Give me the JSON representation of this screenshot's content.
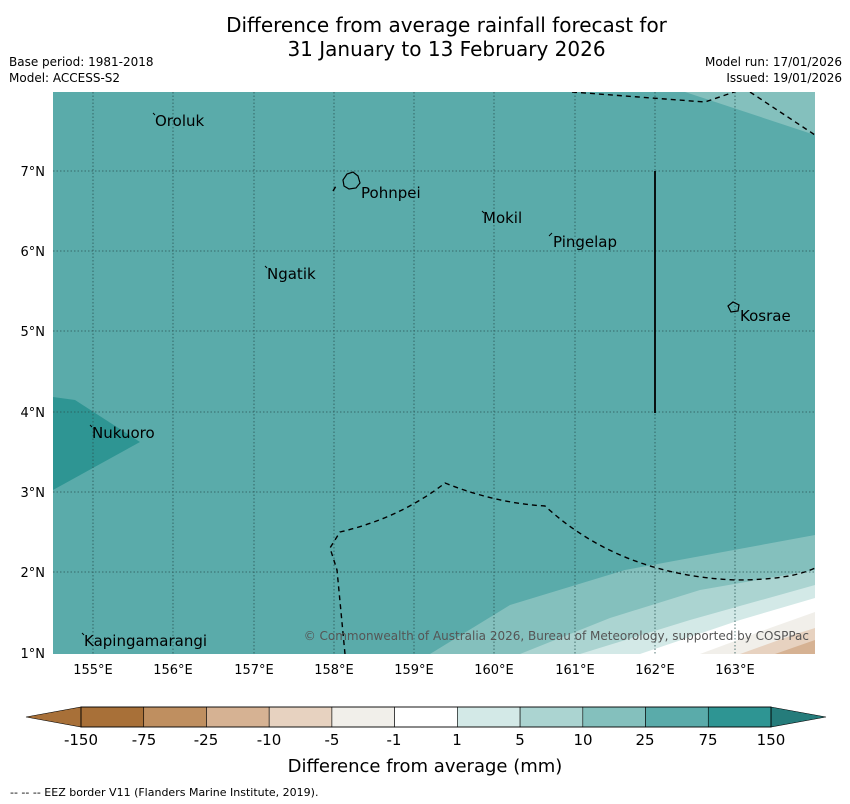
{
  "title": {
    "line1": "Difference from average rainfall forecast for",
    "line2": "31 January to 13 February 2026"
  },
  "meta": {
    "base_period": "Base period: 1981-2018",
    "model": "Model: ACCESS-S2",
    "model_run": "Model run: 17/01/2026",
    "issued": "Issued: 19/01/2026"
  },
  "places": {
    "oroluk": "Oroluk",
    "pohnpei": "Pohnpei",
    "mokil": "Mokil",
    "pingelap": "Pingelap",
    "ngatik": "Ngatik",
    "kosrae": "Kosrae",
    "nukuoro": "Nukuoro",
    "kapingamarangi": "Kapingamarangi"
  },
  "axes": {
    "lon_labels": [
      "155°E",
      "156°E",
      "157°E",
      "158°E",
      "159°E",
      "160°E",
      "161°E",
      "162°E",
      "163°E"
    ],
    "lat_labels": [
      "7°N",
      "6°N",
      "5°N",
      "4°N",
      "3°N",
      "2°N",
      "1°N"
    ]
  },
  "copyright": "© Commonwealth of Australia 2026, Bureau of Meteorology, supported by COSPPac",
  "colorbar": {
    "colors": [
      "#a87038",
      "#bf8f60",
      "#d6b293",
      "#e7d2c0",
      "#f1efea",
      "#ffffff",
      "#d3e9e7",
      "#abd4d1",
      "#84c0bd",
      "#5aabaa",
      "#2e9593",
      "#257c7b"
    ],
    "labels": [
      "-150",
      "-75",
      "-25",
      "-10",
      "-5",
      "-1",
      "1",
      "5",
      "10",
      "25",
      "75",
      "150"
    ],
    "title": "Difference from average (mm)"
  },
  "eez_note": "--  --  -- EEZ border V11 (Flanders Marine Institute, 2019)."
}
